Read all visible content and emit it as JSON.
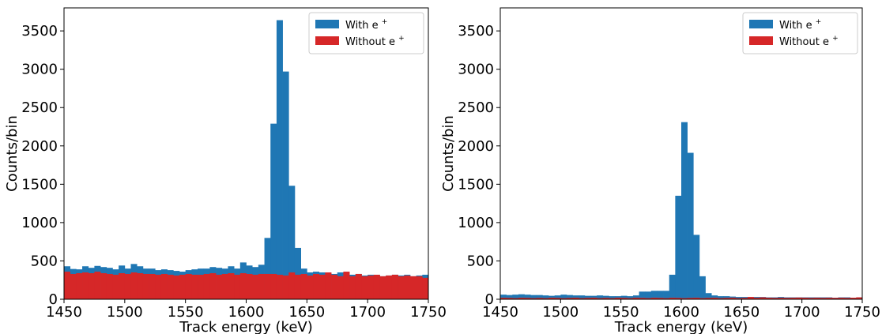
{
  "chart_data": [
    {
      "type": "histogram",
      "xlabel": "Track energy (keV)",
      "ylabel": "Counts/bin",
      "xlim": [
        1450,
        1750
      ],
      "ylim": [
        0,
        3800
      ],
      "xticks": [
        "1450",
        "1500",
        "1550",
        "1600",
        "1650",
        "1700",
        "1750"
      ],
      "yticks": [
        "0",
        "500",
        "1000",
        "1500",
        "2000",
        "2500",
        "3000",
        "3500"
      ],
      "legend_position": "top-right",
      "grid": false,
      "bin_width": 5,
      "series": [
        {
          "name": "With e",
          "name_superscript": "+",
          "color": "#1f77b4",
          "values": [
            430,
            395,
            390,
            430,
            410,
            435,
            420,
            410,
            390,
            440,
            400,
            460,
            430,
            400,
            400,
            380,
            390,
            380,
            370,
            360,
            380,
            390,
            400,
            400,
            420,
            410,
            400,
            430,
            400,
            480,
            440,
            420,
            450,
            800,
            2290,
            3640,
            2970,
            1480,
            670,
            400,
            350,
            360,
            350,
            340,
            330,
            350,
            320,
            320,
            330,
            310,
            320,
            310,
            300,
            310,
            320,
            310,
            320,
            300,
            310,
            320
          ]
        },
        {
          "name": "Without e",
          "name_superscript": "+",
          "color": "#d62728",
          "values": [
            360,
            330,
            340,
            350,
            340,
            360,
            340,
            330,
            320,
            340,
            330,
            350,
            340,
            330,
            330,
            320,
            330,
            320,
            310,
            320,
            330,
            320,
            320,
            330,
            340,
            320,
            330,
            340,
            320,
            340,
            330,
            320,
            330,
            330,
            330,
            320,
            310,
            350,
            320,
            330,
            310,
            330,
            320,
            350,
            320,
            300,
            360,
            300,
            330,
            300,
            310,
            320,
            300,
            310,
            320,
            300,
            310,
            300,
            300,
            280
          ]
        }
      ]
    },
    {
      "type": "histogram",
      "xlabel": "Track energy (keV)",
      "ylabel": "Counts/bin",
      "xlim": [
        1450,
        1750
      ],
      "ylim": [
        0,
        3800
      ],
      "xticks": [
        "1450",
        "1500",
        "1550",
        "1600",
        "1650",
        "1700",
        "1750"
      ],
      "yticks": [
        "0",
        "500",
        "1000",
        "1500",
        "2000",
        "2500",
        "3000",
        "3500"
      ],
      "legend_position": "top-right",
      "grid": false,
      "bin_width": 5,
      "series": [
        {
          "name": "With e",
          "name_superscript": "+",
          "color": "#1f77b4",
          "values": [
            60,
            55,
            60,
            65,
            60,
            55,
            55,
            50,
            45,
            50,
            60,
            55,
            50,
            50,
            45,
            45,
            50,
            45,
            40,
            40,
            45,
            40,
            50,
            100,
            100,
            110,
            110,
            110,
            320,
            1350,
            2310,
            1910,
            840,
            300,
            80,
            50,
            40,
            40,
            35,
            30,
            30,
            30,
            30,
            30,
            25,
            25,
            30,
            25,
            25,
            25,
            25,
            25,
            25,
            25,
            25,
            20,
            25,
            25,
            20,
            25
          ]
        },
        {
          "name": "Without e",
          "name_superscript": "+",
          "color": "#d62728",
          "values": [
            20,
            18,
            15,
            20,
            18,
            15,
            18,
            15,
            20,
            18,
            15,
            18,
            20,
            15,
            18,
            20,
            15,
            18,
            15,
            20,
            18,
            15,
            20,
            18,
            15,
            20,
            18,
            15,
            20,
            18,
            15,
            18,
            20,
            15,
            18,
            20,
            15,
            18,
            20,
            15,
            18,
            30,
            20,
            25,
            20,
            18,
            20,
            18,
            20,
            22,
            20,
            18,
            20,
            18,
            20,
            18,
            20,
            18,
            20,
            25
          ]
        }
      ]
    }
  ]
}
